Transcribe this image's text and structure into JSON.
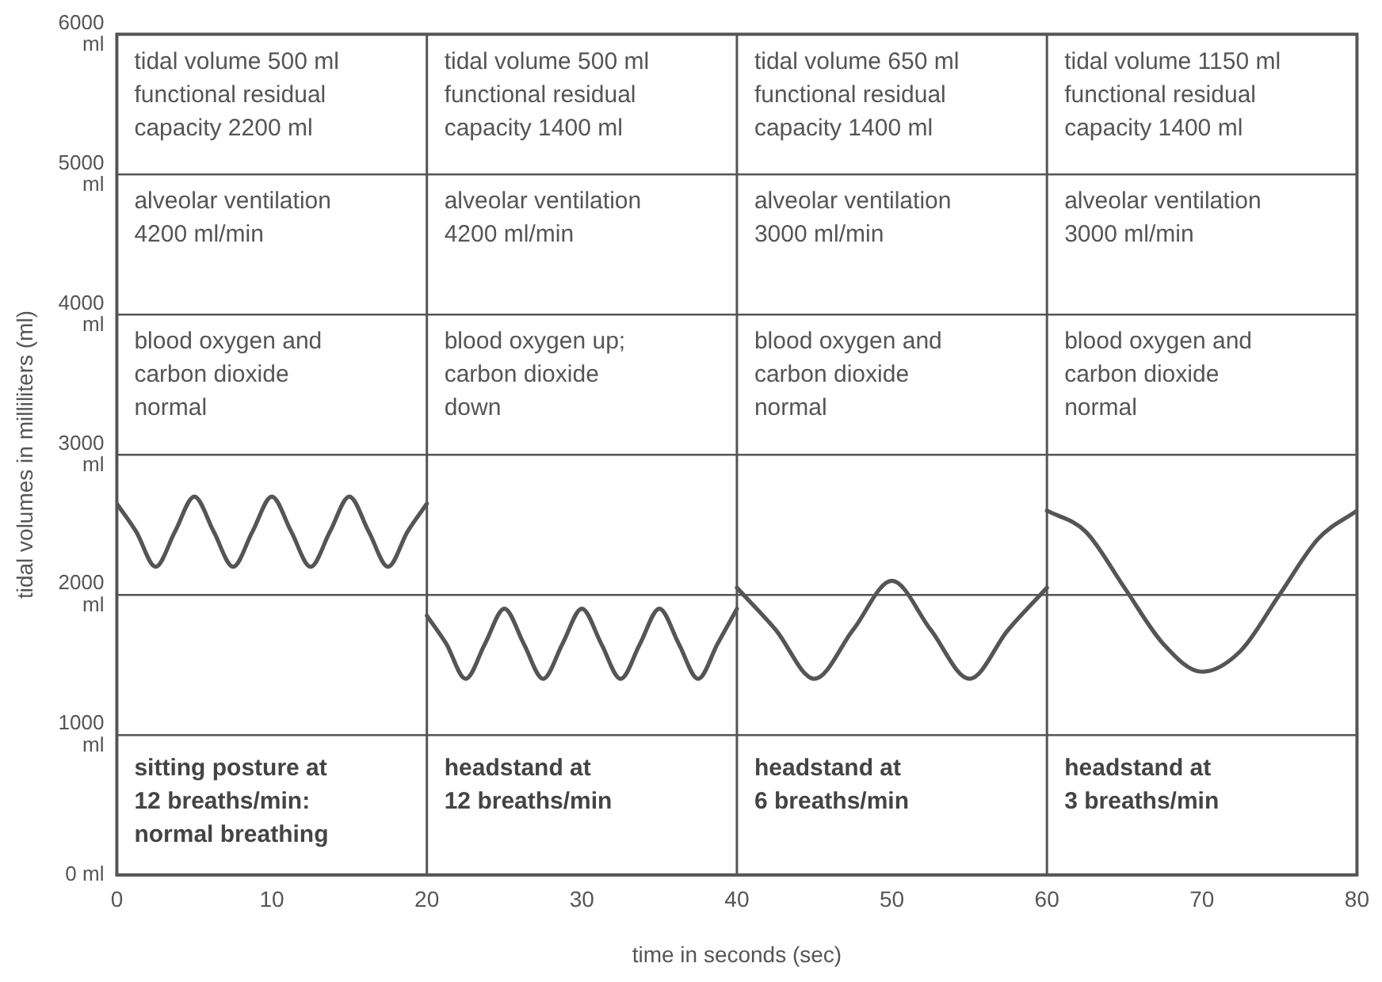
{
  "chart_data": {
    "type": "line",
    "xlabel": "time in seconds (sec)",
    "ylabel": "tidal volumes in milliliters (ml)",
    "xlim": [
      0,
      80
    ],
    "xticks": [
      0,
      10,
      20,
      30,
      40,
      50,
      60,
      70,
      80
    ],
    "ylim": [
      0,
      6000
    ],
    "yticks": [
      {
        "value": 0,
        "label": "0 ml"
      },
      {
        "value": 1000,
        "label": "1000\nml"
      },
      {
        "value": 2000,
        "label": "2000\nml"
      },
      {
        "value": 3000,
        "label": "3000\nml"
      },
      {
        "value": 4000,
        "label": "4000\nml"
      },
      {
        "value": 5000,
        "label": "5000\nml"
      },
      {
        "value": 6000,
        "label": "6000\nml"
      }
    ],
    "grid": "y",
    "legend": false,
    "marker": "none",
    "line_style": "solid",
    "ref_lines": [
      {
        "axis": "x",
        "value": 20,
        "color": "#555555"
      },
      {
        "axis": "x",
        "value": 40,
        "color": "#555555"
      },
      {
        "axis": "x",
        "value": 60,
        "color": "#555555"
      }
    ],
    "series": [
      {
        "color": "#555555",
        "x": [
          0,
          1.25,
          2.5,
          3.75,
          5,
          6.25,
          7.5,
          8.75,
          10,
          11.25,
          12.5,
          13.75,
          15,
          16.25,
          17.5,
          18.75,
          20
        ],
        "values": [
          2650,
          2450,
          2200,
          2450,
          2700,
          2450,
          2200,
          2450,
          2700,
          2450,
          2200,
          2450,
          2700,
          2450,
          2200,
          2450,
          2650
        ]
      },
      {
        "color": "#555555",
        "x": [
          20,
          21.25,
          22.5,
          23.75,
          25,
          26.25,
          27.5,
          28.75,
          30,
          31.25,
          32.5,
          33.75,
          35,
          36.25,
          37.5,
          38.75,
          40
        ],
        "values": [
          1850,
          1650,
          1400,
          1650,
          1900,
          1650,
          1400,
          1650,
          1900,
          1650,
          1400,
          1650,
          1900,
          1650,
          1400,
          1650,
          1900
        ]
      },
      {
        "color": "#555555",
        "x": [
          40,
          42.5,
          45,
          47.5,
          50,
          52.5,
          55,
          57.5,
          60
        ],
        "values": [
          2050,
          1750,
          1400,
          1750,
          2100,
          1750,
          1400,
          1750,
          2050
        ]
      },
      {
        "color": "#555555",
        "x": [
          60,
          62.5,
          65,
          67.5,
          70,
          72.5,
          75,
          77.5,
          80
        ],
        "values": [
          2600,
          2450,
          2050,
          1650,
          1450,
          1600,
          2000,
          2400,
          2600
        ]
      }
    ],
    "annotations": [
      "tidal volume 500 ml\nfunctional residual\ncapacity 2200 ml",
      "tidal volume 500 ml\nfunctional residual\ncapacity 1400 ml",
      "tidal volume 650 ml\nfunctional residual\ncapacity 1400 ml",
      "tidal volume 1150 ml\nfunctional residual\ncapacity 1400 ml",
      "alveolar ventilation\n4200 ml/min",
      "alveolar ventilation\n4200 ml/min",
      "alveolar ventilation\n3000 ml/min",
      "alveolar ventilation\n3000 ml/min",
      "blood oxygen and\ncarbon dioxide\nnormal",
      "blood oxygen up;\ncarbon dioxide\ndown",
      "blood oxygen and\ncarbon dioxide\nnormal",
      "blood oxygen and\ncarbon dioxide\nnormal",
      "sitting posture at\n12 breaths/min:\nnormal breathing",
      "headstand at\n12 breaths/min",
      "headstand at\n6 breaths/min",
      "headstand at\n3 breaths/min"
    ]
  }
}
